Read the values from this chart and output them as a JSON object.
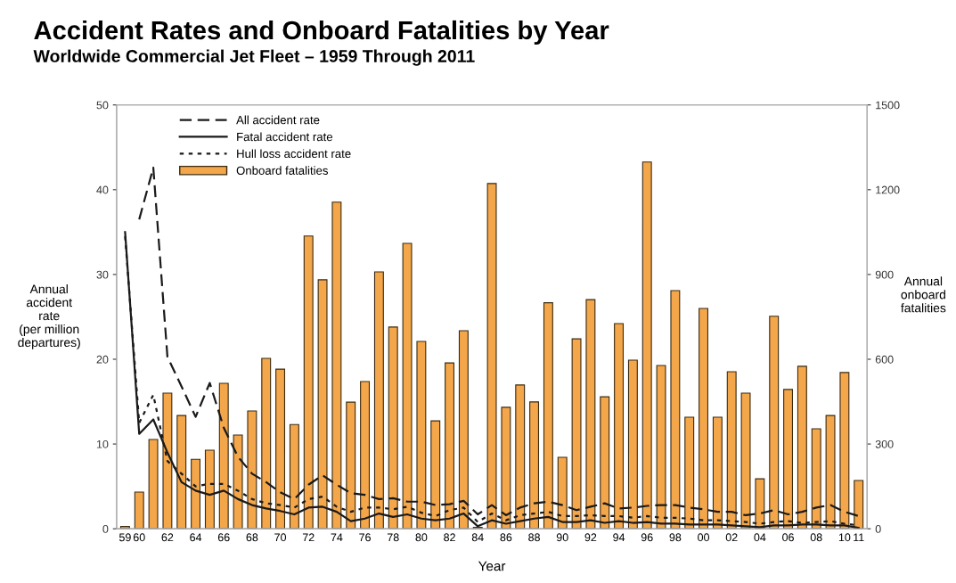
{
  "chart_data": {
    "type": "line",
    "title": "Accident Rates and Onboard Fatalities by Year",
    "subtitle": "Worldwide Commercial Jet Fleet – 1959 Through 2011",
    "xlabel": "Year",
    "ylabel": "Annual\naccident\nrate\n(per million\ndepartures)",
    "y2label": "Annual\nonboard\nfatalities",
    "categories": [
      "59",
      "60",
      null,
      "62",
      null,
      "64",
      null,
      "66",
      null,
      "68",
      null,
      "70",
      null,
      "72",
      null,
      "74",
      null,
      "76",
      null,
      "78",
      null,
      "80",
      null,
      "82",
      null,
      "84",
      null,
      "86",
      null,
      "88",
      null,
      "90",
      null,
      "92",
      null,
      "94",
      null,
      "96",
      null,
      "98",
      null,
      "00",
      null,
      "02",
      null,
      "04",
      null,
      "06",
      null,
      "08",
      null,
      "10",
      "11"
    ],
    "series": [
      {
        "name": "All accident rate",
        "line_style": "dashed",
        "color": "#1a1a1a",
        "values": [
          null,
          36.5,
          42.6,
          20.3,
          16.8,
          13.2,
          17.2,
          11.9,
          8.5,
          6.5,
          5.5,
          4.3,
          3.5,
          5.2,
          6.3,
          5.2,
          4.2,
          4.0,
          3.5,
          3.6,
          3.2,
          3.2,
          2.8,
          2.9,
          3.3,
          1.7,
          2.8,
          1.6,
          2.5,
          3.0,
          3.2,
          2.8,
          2.2,
          2.6,
          3.0,
          2.4,
          2.5,
          2.7,
          2.8,
          2.8,
          2.5,
          2.3,
          2.0,
          2.0,
          1.6,
          1.8,
          2.2,
          1.7,
          2.0,
          2.5,
          2.8,
          2.0,
          1.5
        ]
      },
      {
        "name": "Fatal accident rate",
        "line_style": "solid",
        "color": "#1a1a1a",
        "values": [
          35,
          11.2,
          12.9,
          9,
          5.5,
          4.5,
          4.0,
          4.5,
          3.5,
          2.8,
          2.4,
          2.1,
          1.7,
          2.5,
          2.6,
          2.0,
          0.9,
          1.2,
          1.8,
          1.4,
          1.7,
          1.2,
          1.0,
          1.2,
          1.8,
          0.3,
          1.0,
          0.6,
          0.9,
          1.2,
          1.4,
          0.8,
          0.8,
          1.0,
          0.7,
          0.9,
          0.7,
          0.8,
          0.6,
          0.6,
          0.5,
          0.5,
          0.5,
          0.4,
          0.3,
          0.2,
          0.4,
          0.4,
          0.5,
          0.5,
          0.4,
          0.4,
          0.1
        ]
      },
      {
        "name": "Hull loss accident rate",
        "line_style": "dotted",
        "color": "#1a1a1a",
        "values": [
          34.5,
          12.5,
          15.8,
          8,
          6.5,
          5.0,
          5.3,
          5.3,
          4.5,
          3.5,
          3.0,
          2.8,
          2.5,
          3.5,
          3.8,
          2.6,
          2.0,
          2.5,
          2.5,
          2.3,
          2.6,
          1.9,
          1.5,
          2.2,
          2.5,
          0.8,
          1.8,
          1.0,
          1.6,
          1.8,
          2.0,
          1.5,
          1.5,
          1.6,
          1.5,
          1.5,
          1.3,
          1.5,
          1.3,
          1.3,
          1.2,
          1.0,
          1.0,
          0.9,
          0.8,
          0.6,
          0.8,
          0.9,
          0.7,
          0.8,
          0.9,
          0.6,
          0.4
        ]
      },
      {
        "name": "Onboard fatalities",
        "type": "bar",
        "axis": "y2",
        "color": "#f4a64a",
        "values": [
          8,
          130,
          316,
          480,
          401,
          246,
          278,
          515,
          332,
          417,
          603,
          565,
          369,
          1036,
          881,
          1156,
          448,
          521,
          909,
          714,
          1010,
          663,
          382,
          587,
          701,
          5,
          1222,
          430,
          509,
          449,
          800,
          253,
          672,
          811,
          467,
          726,
          597,
          1298,
          578,
          843,
          395,
          780,
          395,
          556,
          480,
          177,
          752,
          493,
          575,
          354,
          401,
          553,
          171
        ]
      }
    ],
    "ylim": [
      0,
      50
    ],
    "yticks": [
      0,
      10,
      20,
      30,
      40,
      50
    ],
    "y2lim": [
      0,
      1500
    ],
    "y2ticks": [
      0,
      300,
      600,
      900,
      1200,
      1500
    ],
    "legend": "top left",
    "grid": false
  }
}
